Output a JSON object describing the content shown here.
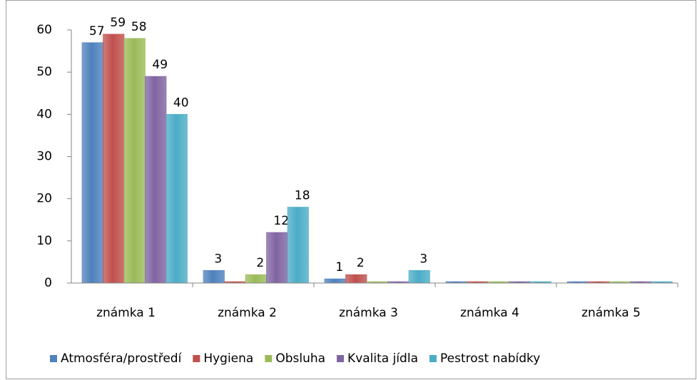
{
  "chart_data": {
    "type": "bar",
    "categories": [
      "známka 1",
      "známka 2",
      "známka 3",
      "známka 4",
      "známka 5"
    ],
    "series": [
      {
        "name": "Atmosféra/prostředí",
        "color": "#4f81bd",
        "values": [
          57,
          3,
          1,
          0,
          0
        ]
      },
      {
        "name": "Hygiena",
        "color": "#c0504d",
        "values": [
          59,
          0,
          2,
          0,
          0
        ]
      },
      {
        "name": "Obsluha",
        "color": "#9bbb59",
        "values": [
          58,
          2,
          0,
          0,
          0
        ]
      },
      {
        "name": "Kvalita jídla",
        "color": "#8064a2",
        "values": [
          49,
          12,
          0,
          0,
          0
        ]
      },
      {
        "name": "Pestrost nabídky",
        "color": "#4bacc6",
        "values": [
          40,
          18,
          3,
          0,
          0
        ]
      }
    ],
    "ylim": [
      0,
      60
    ],
    "yticks": [
      0,
      10,
      20,
      30,
      40,
      50,
      60
    ],
    "grid": false,
    "legend": "bottom"
  }
}
